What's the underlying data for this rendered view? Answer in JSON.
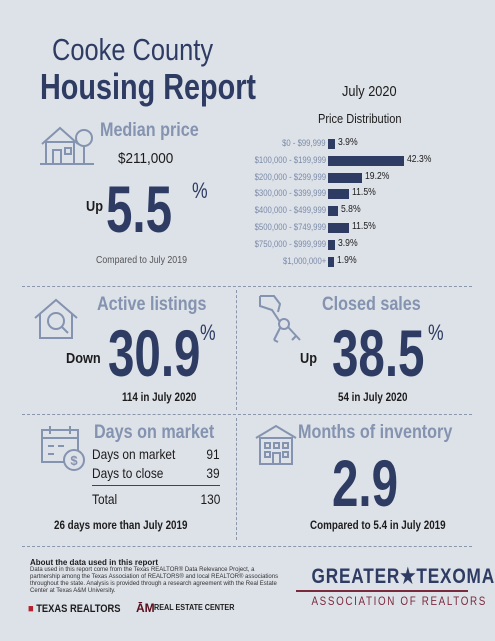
{
  "header": {
    "county": "Cooke County",
    "report": "Housing Report",
    "month": "July 2020",
    "dist_title": "Price Distribution"
  },
  "median": {
    "label": "Median price",
    "price": "$211,000",
    "direction": "Up",
    "value": "5.5",
    "pct": "%",
    "compared": "Compared to July 2019"
  },
  "distribution": [
    {
      "label": "$0 - $99,999",
      "value": "3.9%",
      "pct": 3.9
    },
    {
      "label": "$100,000 - $199,999",
      "value": "42.3%",
      "pct": 42.3
    },
    {
      "label": "$200,000 - $299,999",
      "value": "19.2%",
      "pct": 19.2
    },
    {
      "label": "$300,000 - $399,999",
      "value": "11.5%",
      "pct": 11.5
    },
    {
      "label": "$400,000 - $499,999",
      "value": "5.8%",
      "pct": 5.8
    },
    {
      "label": "$500,000 - $749,999",
      "value": "11.5%",
      "pct": 11.5
    },
    {
      "label": "$750,000 - $999,999",
      "value": "3.9%",
      "pct": 3.9
    },
    {
      "label": "$1,000,000+",
      "value": "1.9%",
      "pct": 1.9
    }
  ],
  "active": {
    "label": "Active listings",
    "direction": "Down",
    "value": "30.9",
    "pct": "%",
    "note": "114 in July 2020"
  },
  "closed": {
    "label": "Closed sales",
    "direction": "Up",
    "value": "38.5",
    "pct": "%",
    "note": "54 in July 2020"
  },
  "days": {
    "label": "Days on market",
    "rows": [
      {
        "label": "Days on market",
        "value": "91"
      },
      {
        "label": "Days to close",
        "value": "39"
      },
      {
        "label": "Total",
        "value": "130"
      }
    ],
    "note": "26 days more than July 2019"
  },
  "inventory": {
    "label": "Months of inventory",
    "value": "2.9",
    "note": "Compared to 5.4 in July 2019"
  },
  "footer": {
    "about_heading": "About the data used in this report",
    "about_text": "Data used in this report come from the Texas REALTOR® Data Relevance Project, a partnership among the Texas Association of REALTORS® and local REALTOR® associations throughout the state. Analysis is provided through a research agreement with the Real Estate Center at Texas A&M University.",
    "texas_realtors": "TEXAS REALTORS",
    "rec_mark": "ĀM",
    "rec_name": "REAL ESTATE CENTER",
    "gtx_top": "GREATER★TEXOMA",
    "gtx_bottom": "ASSOCIATION OF REALTORS"
  },
  "colors": {
    "navy": "#2e3c63",
    "muted_blue": "#8493af",
    "background": "#dde1e8",
    "maroon": "#7a2a3c"
  },
  "icons": [
    "house-tree-icon",
    "house-magnifier-icon",
    "hand-keys-icon",
    "calendar-dollar-icon",
    "building-icon"
  ]
}
